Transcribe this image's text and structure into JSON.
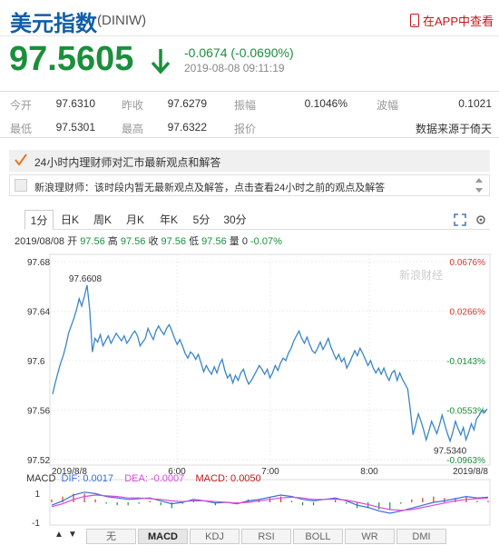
{
  "header": {
    "title": "美元指数",
    "code": "(DINIW)",
    "app_link": "在APP中查看"
  },
  "quote": {
    "price": "97.5605",
    "change": "-0.0674 (-0.0690%)",
    "timestamp": "2019-08-08 09:11:19",
    "color": "#1a8f3c"
  },
  "stats": [
    [
      {
        "label": "今开",
        "value": "97.6310"
      },
      {
        "label": "昨收",
        "value": "97.6279"
      },
      {
        "label": "振幅",
        "value": "0.1046%"
      },
      {
        "label": "波幅",
        "value": "0.1021"
      }
    ],
    [
      {
        "label": "最低",
        "value": "97.5301"
      },
      {
        "label": "最高",
        "value": "97.6322"
      },
      {
        "label": "报价",
        "value": ""
      },
      {
        "label": "",
        "value": "数据来源于倚天"
      }
    ]
  ],
  "news": {
    "title": "24小时内理财师对汇市最新观点和解答",
    "item": "新浪理财师：该时段内暂无最新观点及解答，点击查看24小时之前的观点及解答"
  },
  "tabs": [
    "1分",
    "日K",
    "周K",
    "月K",
    "年K",
    "5分",
    "30分"
  ],
  "ohlc": {
    "date": "2019/08/08",
    "open_label": "开",
    "open": "97.56",
    "high_label": "高",
    "high": "97.56",
    "close_label": "收",
    "close": "97.56",
    "low_label": "低",
    "low": "97.56",
    "vol_label": "量",
    "vol": "0",
    "pct": "-0.07%"
  },
  "macd": {
    "name": "MACD",
    "dif": "DIF: 0.0017",
    "dea": "DEA: -0.0007",
    "macd": "MACD: 0.0050",
    "y_labels": [
      "1",
      "-1"
    ]
  },
  "indicators": [
    "无",
    "MACD",
    "KDJ",
    "RSI",
    "BOLL",
    "WR",
    "DMI"
  ],
  "nav": {
    "up": "▲",
    "down": "▼"
  },
  "chart_data": {
    "type": "line",
    "title": "",
    "y_ticks": [
      "97.68",
      "97.64",
      "97.6",
      "97.56",
      "97.52"
    ],
    "pct_ticks": [
      "0.0676%",
      "0.0266%",
      "-0.0143%",
      "-0.0553%",
      "-0.0963%"
    ],
    "x_ticks": [
      "2019/8/8",
      "6:00",
      "7:00",
      "8:00",
      "2019/8/8"
    ],
    "ylim": [
      97.52,
      97.68
    ],
    "annotations": [
      "97.6608",
      "97.5340"
    ],
    "watermark": "新浪财经",
    "series": [
      {
        "values": [
          97.573,
          97.582,
          97.59,
          97.598,
          97.604,
          97.612,
          97.622,
          97.628,
          97.634,
          97.641,
          97.65,
          97.644,
          97.652,
          97.661,
          97.641,
          97.607,
          97.618,
          97.615,
          97.621,
          97.612,
          97.616,
          97.62,
          97.614,
          97.618,
          97.622,
          97.619,
          97.616,
          97.62,
          97.614,
          97.617,
          97.621,
          97.624,
          97.62,
          97.612,
          97.615,
          97.618,
          97.626,
          97.621,
          97.617,
          97.624,
          97.628,
          97.624,
          97.621,
          97.626,
          97.629,
          97.624,
          97.618,
          97.613,
          97.617,
          97.612,
          97.606,
          97.602,
          97.607,
          97.605,
          97.601,
          97.605,
          97.598,
          97.591,
          97.596,
          97.592,
          97.589,
          97.595,
          97.59,
          97.597,
          97.601,
          97.592,
          97.586,
          97.589,
          97.582,
          97.588,
          97.584,
          97.59,
          97.593,
          97.586,
          97.581,
          97.584,
          97.588,
          97.592,
          97.596,
          97.593,
          97.589,
          97.593,
          97.586,
          97.59,
          97.596,
          97.592,
          97.598,
          97.602,
          97.6,
          97.606,
          97.61,
          97.616,
          97.62,
          97.624,
          97.618,
          97.614,
          97.619,
          97.613,
          97.608,
          97.606,
          97.61,
          97.615,
          97.609,
          97.613,
          97.618,
          97.611,
          97.606,
          97.601,
          97.605,
          97.599,
          97.602,
          97.594,
          97.598,
          97.603,
          97.608,
          97.604,
          97.61,
          97.606,
          97.601,
          97.596,
          97.6,
          97.594,
          97.59,
          97.594,
          97.589,
          97.594,
          97.588,
          97.584,
          97.59,
          97.592,
          97.584,
          97.59,
          97.585,
          97.581,
          97.577,
          97.56,
          97.54,
          97.548,
          97.557,
          97.551,
          97.544,
          97.536,
          97.543,
          97.551,
          97.546,
          97.541,
          97.548,
          97.556,
          97.548,
          97.541,
          97.535,
          97.542,
          97.551,
          97.545,
          97.54,
          97.546,
          97.536,
          97.542,
          97.549,
          97.544,
          97.553,
          97.556,
          97.56,
          97.558,
          97.561
        ]
      }
    ],
    "macd_dif": [
      -0.2,
      0.1,
      0.5,
      0.7,
      0.6,
      0.4,
      0.3,
      0.2,
      0.25,
      0.3,
      0.1,
      -0.1,
      0.0,
      0.2,
      0.1,
      -0.05,
      0.0,
      -0.1,
      0.1,
      0.2,
      0.35,
      0.5,
      0.4,
      0.2,
      0.1,
      0.2,
      0.3,
      0.1,
      -0.2,
      -0.35,
      -0.6,
      -0.75,
      -0.6,
      -0.4,
      -0.2,
      0.0,
      0.1,
      0.25,
      0.4,
      0.3,
      0.35
    ],
    "macd_dea": [
      -0.3,
      -0.1,
      0.2,
      0.4,
      0.5,
      0.45,
      0.4,
      0.3,
      0.3,
      0.25,
      0.2,
      0.1,
      0.05,
      0.1,
      0.1,
      0.05,
      0.0,
      -0.05,
      0.0,
      0.1,
      0.2,
      0.3,
      0.35,
      0.3,
      0.2,
      0.2,
      0.22,
      0.15,
      0.0,
      -0.15,
      -0.35,
      -0.5,
      -0.55,
      -0.5,
      -0.35,
      -0.2,
      -0.05,
      0.1,
      0.2,
      0.25,
      0.3
    ]
  }
}
